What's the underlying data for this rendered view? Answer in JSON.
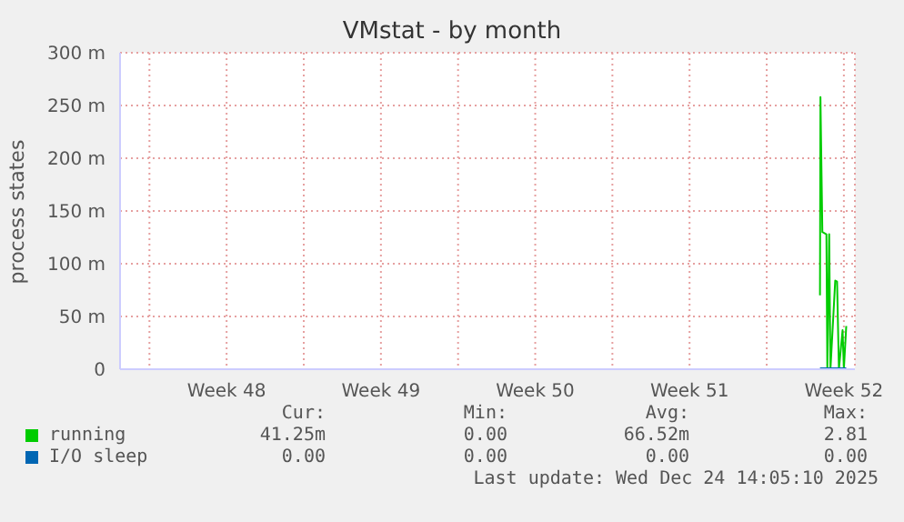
{
  "chart_data": {
    "type": "line",
    "title": "VMstat - by month",
    "ylabel": "process states",
    "x": [
      "2025-12-24T10:00",
      "2025-12-24T10:30",
      "2025-12-24T12:36",
      "2025-12-24T17:00",
      "2025-12-24T18:00",
      "2025-12-24T20:00",
      "2025-12-24T21:24",
      "2025-12-25T02:36",
      "2025-12-25T04:36",
      "2025-12-25T06:36",
      "2025-12-25T10:36",
      "2025-12-25T12:00",
      "2025-12-25T14:36"
    ],
    "series": [
      {
        "name": "running",
        "color": "#00cc00",
        "values": [
          70,
          258,
          130,
          128,
          0,
          128,
          0,
          84,
          83,
          0,
          37,
          0,
          41
        ]
      },
      {
        "name": "I/O sleep",
        "color": "#0066b3",
        "values": [
          0,
          0,
          0,
          0,
          0,
          0,
          0,
          0,
          0,
          0,
          0,
          0,
          0
        ]
      }
    ],
    "xlim": [
      "2025-11-22T16:00",
      "2025-12-26T00:00"
    ],
    "xticks": [
      {
        "value": "2025-11-24",
        "label": null
      },
      {
        "value": "2025-11-27T12:00",
        "label": "Week 48"
      },
      {
        "value": "2025-12-01",
        "label": null
      },
      {
        "value": "2025-12-04T12:00",
        "label": "Week 49"
      },
      {
        "value": "2025-12-08",
        "label": null
      },
      {
        "value": "2025-12-11T12:00",
        "label": "Week 50"
      },
      {
        "value": "2025-12-15",
        "label": null
      },
      {
        "value": "2025-12-18T12:00",
        "label": "Week 51"
      },
      {
        "value": "2025-12-22",
        "label": null
      },
      {
        "value": "2025-12-25T12:00",
        "label": "Week 52"
      }
    ],
    "ylim": [
      0,
      300
    ],
    "yticks": [
      0,
      {
        "value": 50,
        "label": "50 m"
      },
      {
        "value": 100,
        "label": "100 m"
      },
      {
        "value": 150,
        "label": "150 m"
      },
      {
        "value": 200,
        "label": "200 m"
      },
      {
        "value": 250,
        "label": "250 m"
      },
      {
        "value": 300,
        "label": "300 m"
      }
    ],
    "grid": true,
    "legend": "bottom",
    "marker": "none",
    "annotations": [
      "Cur:",
      "Min:",
      "Avg:",
      "Max:",
      "41.25m",
      "0.00",
      "66.52m",
      "2.81",
      "0.00",
      "0.00",
      "0.00",
      "0.00",
      "Last update: Wed Dec 24 14:05:10 2025"
    ]
  }
}
